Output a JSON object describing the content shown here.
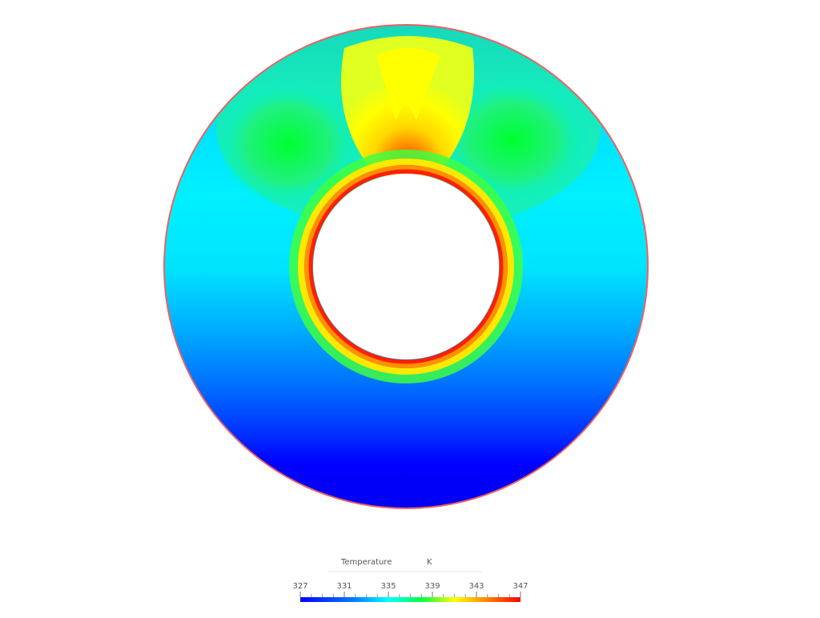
{
  "legend": {
    "title": "Temperature",
    "unit": "K",
    "range": [
      327,
      347
    ],
    "ticks": [
      327,
      331,
      335,
      339,
      343,
      347
    ]
  }
}
